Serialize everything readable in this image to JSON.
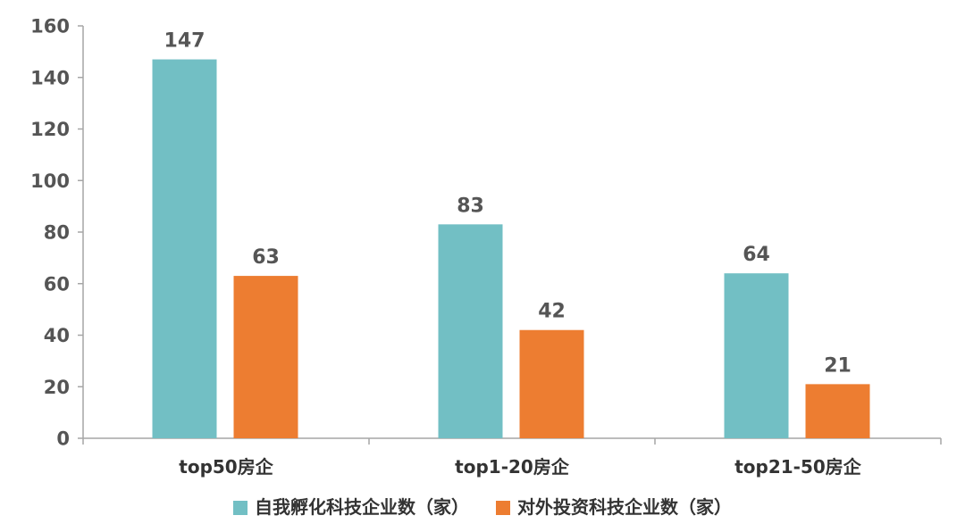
{
  "chart_data": {
    "type": "bar",
    "categories": [
      "top50房企",
      "top1-20房企",
      "top21-50房企"
    ],
    "series": [
      {
        "name": "自我孵化科技企业数（家）",
        "values": [
          147,
          83,
          64
        ],
        "color": "#72BFC4"
      },
      {
        "name": "对外投资科技企业数（家）",
        "values": [
          63,
          42,
          21
        ],
        "color": "#ED7D31"
      }
    ],
    "title": "",
    "xlabel": "",
    "ylabel": "",
    "ylim": [
      0,
      160
    ],
    "yticks": [
      0,
      20,
      40,
      60,
      80,
      100,
      120,
      140,
      160
    ],
    "grid": false,
    "legend": "bottom",
    "data_labels": true
  }
}
